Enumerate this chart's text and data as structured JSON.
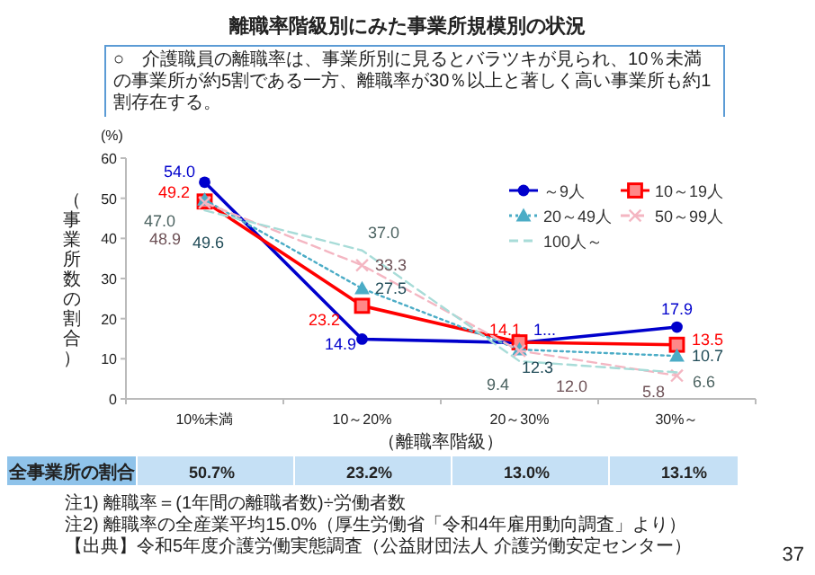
{
  "chart_data": {
    "type": "line",
    "title": "離職率階級別にみた事業所規模別の状況",
    "subtitle": "○　介護職員の離職率は、事業所別に見るとバラツキが見られ、10％未満の事業所が約5割である一方、離職率が30％以上と著しく高い事業所も約1割存在する。",
    "xlabel": "（離職率階級）",
    "ylabel": "（事業所数の割合）",
    "categories": [
      "10%未満",
      "10～20%",
      "20～30%",
      "30%～"
    ],
    "ylim": [
      0,
      60
    ],
    "yticks": [
      0,
      10,
      20,
      30,
      40,
      50,
      60
    ],
    "grid": false,
    "legend": "top right",
    "data_labels": true,
    "series": [
      {
        "name": "～9人",
        "color": "#0000cc",
        "values": [
          54.0,
          14.9,
          14.0,
          17.9
        ],
        "value_labels": [
          "54.0",
          "14.9",
          "1...",
          "17.9"
        ],
        "marker": "circle",
        "line_style": "solid"
      },
      {
        "name": "10～19人",
        "color": "#ff0000",
        "values": [
          49.2,
          23.2,
          14.1,
          13.5
        ],
        "value_labels": [
          "49.2",
          "23.2",
          "14.1",
          "13.5"
        ],
        "marker": "square",
        "line_style": "solid"
      },
      {
        "name": "20～49人",
        "color": "#4bacc6",
        "values": [
          49.6,
          27.5,
          12.3,
          10.7
        ],
        "value_labels": [
          "49.6",
          "27.5",
          "12.3",
          "10.7"
        ],
        "marker": "triangle",
        "line_style": "dotted"
      },
      {
        "name": "50～99人",
        "color": "#f4b6c2",
        "values": [
          48.9,
          33.3,
          12.0,
          5.8
        ],
        "value_labels": [
          "48.9",
          "33.3",
          "12.0",
          "5.8"
        ],
        "marker": "cross",
        "line_style": "dashed"
      },
      {
        "name": "100人～",
        "color": "#a8dcd8",
        "values": [
          47.0,
          37.0,
          9.4,
          6.6
        ],
        "value_labels": [
          "47.0",
          "37.0",
          "9.4",
          "6.6"
        ],
        "marker": "none",
        "line_style": "dashed"
      }
    ],
    "annotations": [
      "(%)",
      "全事業所の割合",
      "50.7%",
      "23.2%",
      "13.0%",
      "13.1%",
      "注1) 離職率＝(1年間の離職者数)÷労働者数",
      "注2) 離職率の全産業平均15.0%（厚生労働省「令和4年雇用動向調査」より）",
      "【出典】令和5年度介護労働実態調査（公益財団法人 介護労働安定センター）",
      "37"
    ]
  }
}
